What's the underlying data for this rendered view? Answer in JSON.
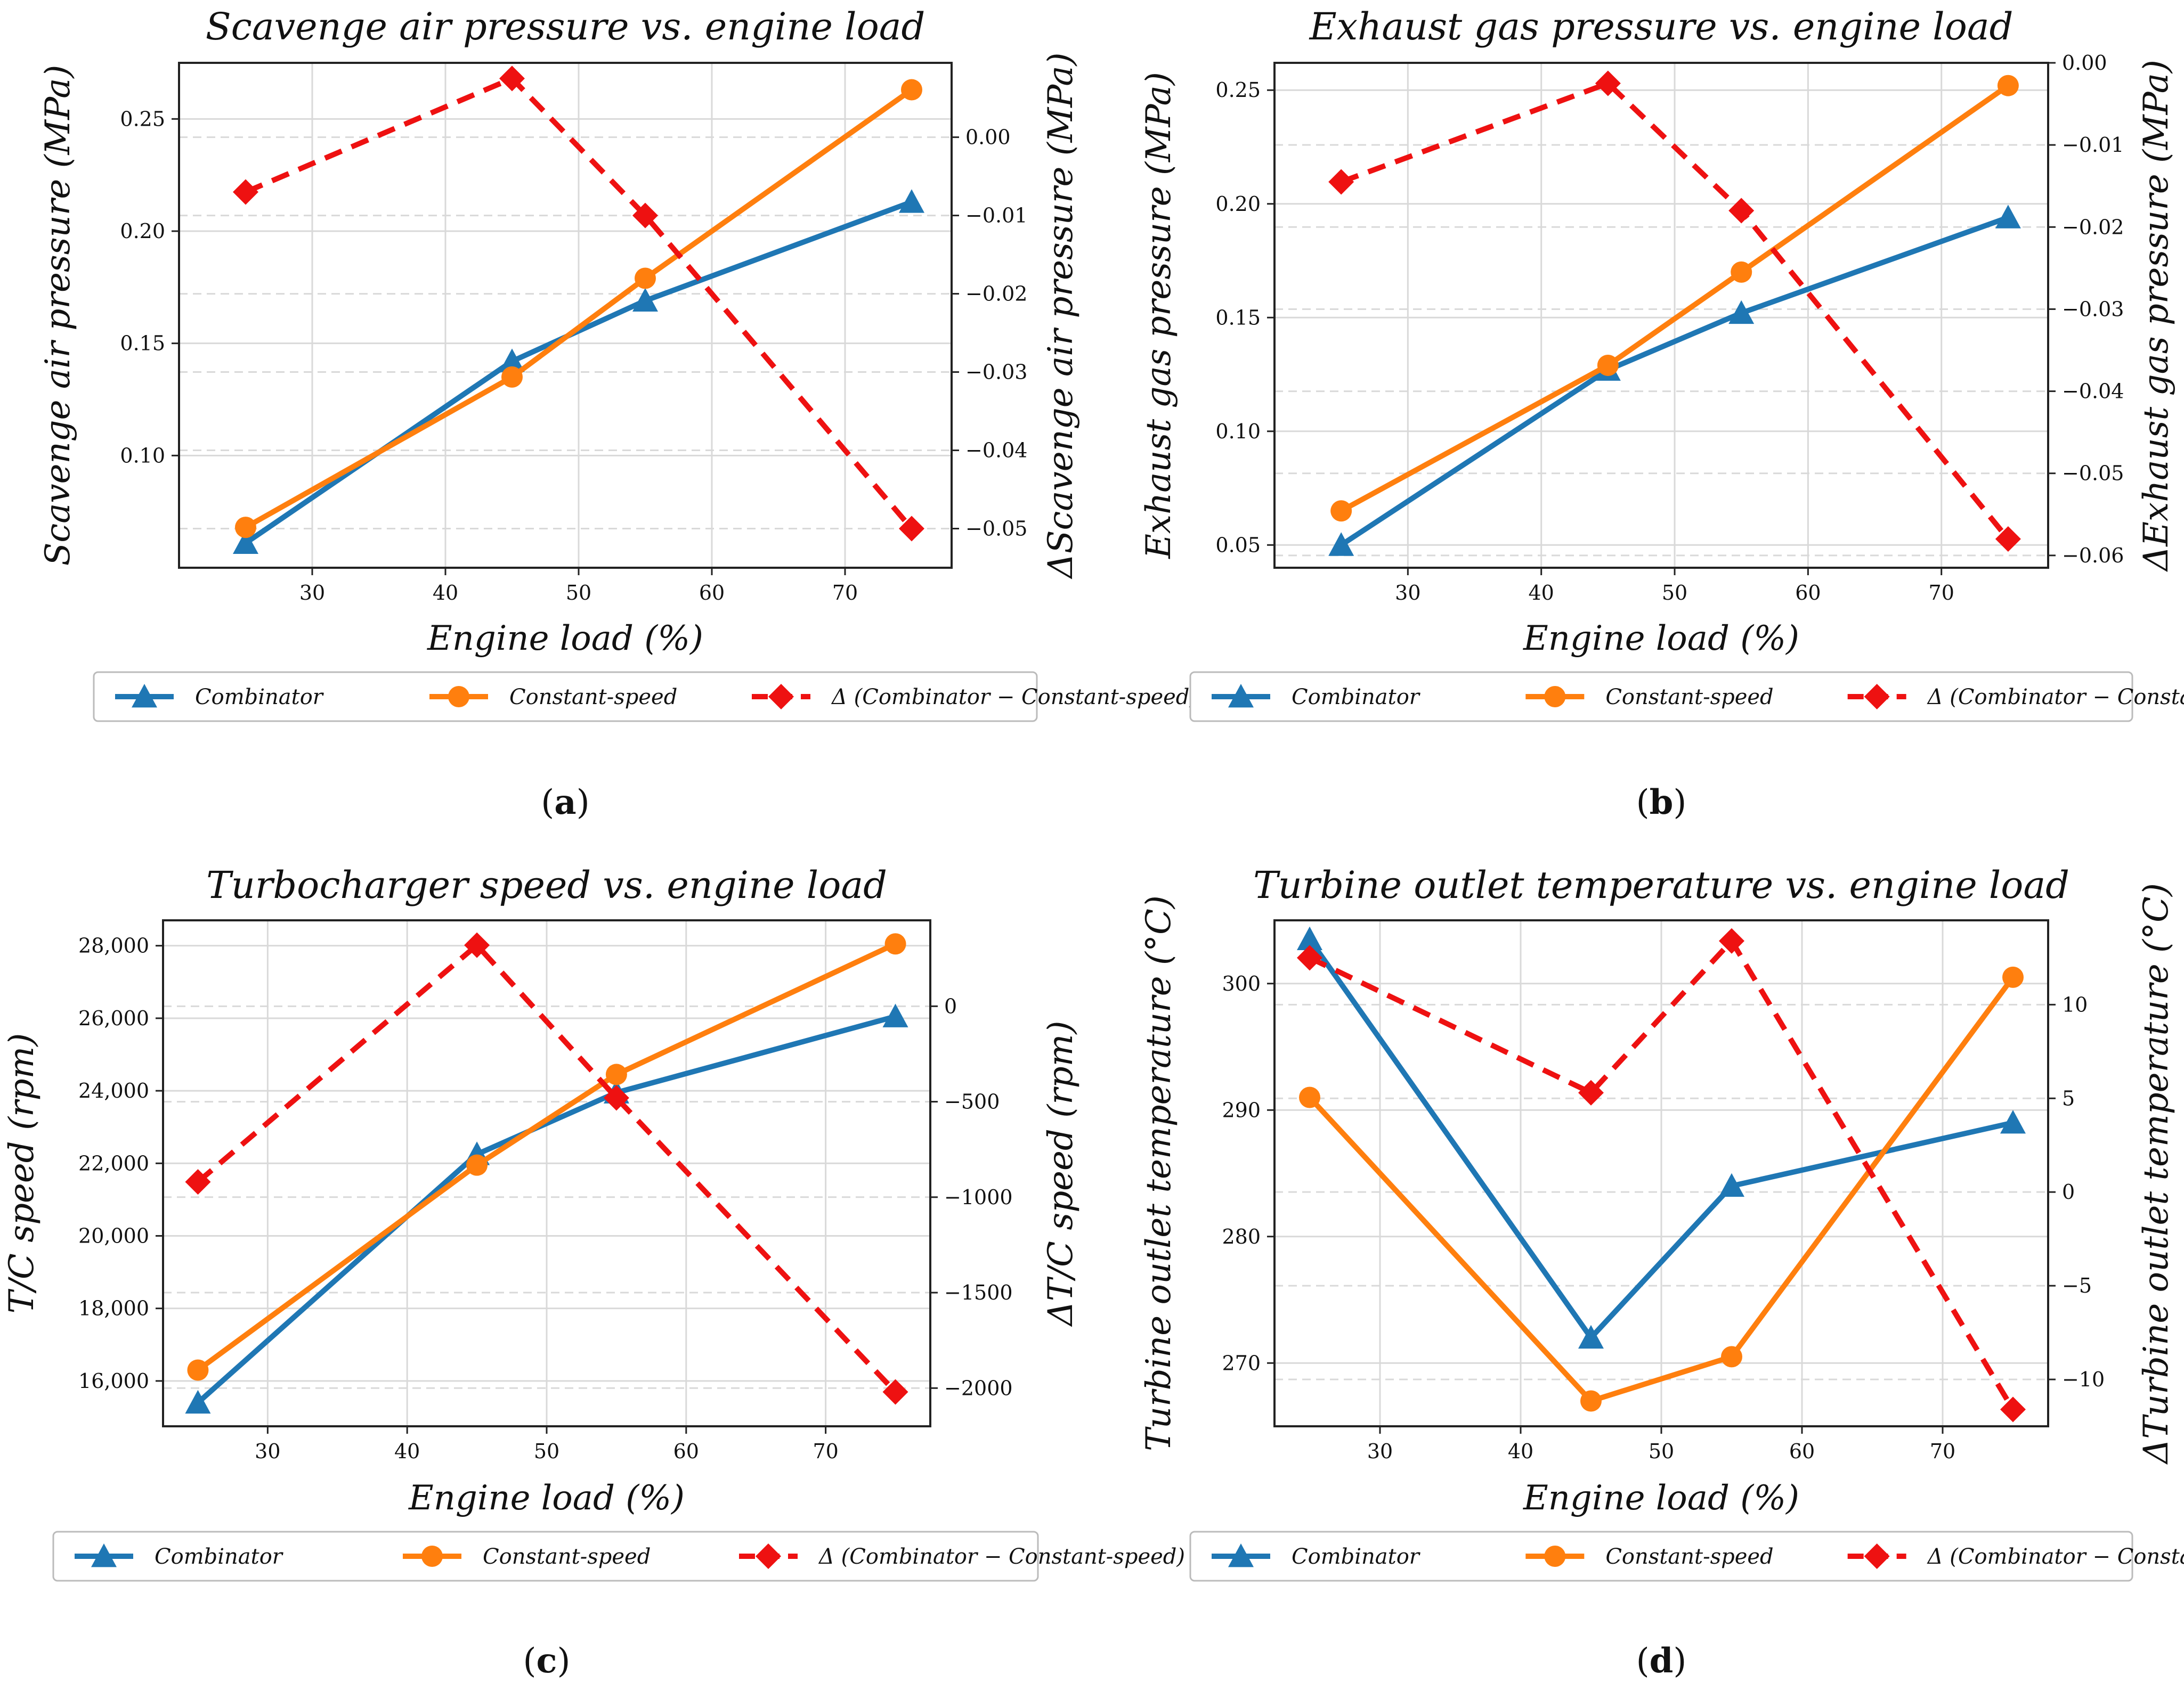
{
  "colors": {
    "combinator": "#1f77b4",
    "constant_speed": "#ff7f0e",
    "delta": "#ee1111",
    "grid": "#d9d9d9"
  },
  "chart_data": [
    {
      "id": "a",
      "type": "line",
      "panel_label": "a",
      "title": "Scavenge air pressure vs. engine load",
      "xlabel": "Engine load (%)",
      "ylabel": "Scavenge air pressure (MPa)",
      "y2label": "ΔScavenge air pressure (MPa)",
      "xlim": [
        20,
        78
      ],
      "ylim": [
        0.05,
        0.275
      ],
      "y2lim": [
        -0.055,
        0.0095
      ],
      "xticks": [
        30,
        40,
        50,
        60,
        70
      ],
      "yticks": [
        0.1,
        0.15,
        0.2,
        0.25
      ],
      "ytick_labels": [
        "0.10",
        "0.15",
        "0.20",
        "0.25"
      ],
      "y2ticks": [
        0.0,
        -0.01,
        -0.02,
        -0.03,
        -0.04,
        -0.05
      ],
      "y2tick_labels": [
        "0.00",
        "−0.01",
        "−0.02",
        "−0.03",
        "−0.04",
        "−0.05"
      ],
      "x": [
        25,
        45,
        55,
        75
      ],
      "series": [
        {
          "name": "Combinator",
          "axis": "left",
          "marker": "triangle",
          "values": [
            0.061,
            0.142,
            0.169,
            0.213
          ]
        },
        {
          "name": "Constant-speed",
          "axis": "left",
          "marker": "circle",
          "values": [
            0.068,
            0.135,
            0.179,
            0.263
          ]
        },
        {
          "name": "Δ (Combinator − Constant-speed)",
          "axis": "right",
          "marker": "diamond",
          "dashed": true,
          "values": [
            -0.007,
            0.0075,
            -0.01,
            -0.05
          ]
        }
      ]
    },
    {
      "id": "b",
      "type": "line",
      "panel_label": "b",
      "title": "Exhaust gas pressure vs. engine load",
      "xlabel": "Engine load (%)",
      "ylabel": "Exhaust gas pressure (MPa)",
      "y2label": "ΔExhaust gas pressure (MPa)",
      "xlim": [
        20,
        78
      ],
      "ylim": [
        0.04,
        0.262
      ],
      "y2lim": [
        -0.0615,
        0.0
      ],
      "xticks": [
        30,
        40,
        50,
        60,
        70
      ],
      "yticks": [
        0.05,
        0.1,
        0.15,
        0.2,
        0.25
      ],
      "ytick_labels": [
        "0.05",
        "0.10",
        "0.15",
        "0.20",
        "0.25"
      ],
      "y2ticks": [
        0.0,
        -0.01,
        -0.02,
        -0.03,
        -0.04,
        -0.05,
        -0.06
      ],
      "y2tick_labels": [
        "0.00",
        "−0.01",
        "−0.02",
        "−0.03",
        "−0.04",
        "−0.05",
        "−0.06"
      ],
      "x": [
        25,
        45,
        55,
        75
      ],
      "series": [
        {
          "name": "Combinator",
          "axis": "left",
          "marker": "triangle",
          "values": [
            0.05,
            0.127,
            0.152,
            0.194
          ]
        },
        {
          "name": "Constant-speed",
          "axis": "left",
          "marker": "circle",
          "values": [
            0.065,
            0.129,
            0.17,
            0.252
          ]
        },
        {
          "name": "Δ (Combinator − Constant-speed)",
          "axis": "right",
          "marker": "diamond",
          "dashed": true,
          "values": [
            -0.0145,
            -0.0025,
            -0.018,
            -0.058
          ]
        }
      ]
    },
    {
      "id": "c",
      "type": "line",
      "panel_label": "c",
      "title": "Turbocharger speed vs. engine load",
      "xlabel": "Engine load (%)",
      "ylabel": "T/C speed (rpm)",
      "y2label": "ΔT/C speed (rpm)",
      "xlim": [
        22.5,
        77.5
      ],
      "ylim": [
        14750,
        28700
      ],
      "y2lim": [
        -2200,
        450
      ],
      "xticks": [
        30,
        40,
        50,
        60,
        70
      ],
      "yticks": [
        16000,
        18000,
        20000,
        22000,
        24000,
        26000,
        28000
      ],
      "ytick_labels": [
        "16,000",
        "18,000",
        "20,000",
        "22,000",
        "24,000",
        "26,000",
        "28,000"
      ],
      "y2ticks": [
        0,
        -500,
        -1000,
        -1500,
        -2000
      ],
      "y2tick_labels": [
        "0",
        "−500",
        "−1000",
        "−1500",
        "−2000"
      ],
      "x": [
        25,
        45,
        55,
        75
      ],
      "series": [
        {
          "name": "Combinator",
          "axis": "left",
          "marker": "triangle",
          "values": [
            15400,
            22250,
            23950,
            26050
          ]
        },
        {
          "name": "Constant-speed",
          "axis": "left",
          "marker": "circle",
          "values": [
            16300,
            21950,
            24450,
            28050
          ]
        },
        {
          "name": "Δ (Combinator − Constant-speed)",
          "axis": "right",
          "marker": "diamond",
          "dashed": true,
          "values": [
            -920,
            320,
            -480,
            -2020
          ]
        }
      ]
    },
    {
      "id": "d",
      "type": "line",
      "panel_label": "d",
      "title": "Turbine outlet temperature vs. engine load",
      "xlabel": "Engine load (%)",
      "ylabel": "Turbine outlet temperature (°C)",
      "y2label": "ΔTurbine outlet temperature (°C)",
      "xlim": [
        22.5,
        77.5
      ],
      "ylim": [
        265,
        305
      ],
      "y2lim": [
        -12.5,
        14.5
      ],
      "xticks": [
        30,
        40,
        50,
        60,
        70
      ],
      "yticks": [
        270,
        280,
        290,
        300
      ],
      "ytick_labels": [
        "270",
        "280",
        "290",
        "300"
      ],
      "y2ticks": [
        10,
        5,
        0,
        -5,
        -10
      ],
      "y2tick_labels": [
        "10",
        "5",
        "0",
        "−5",
        "−10"
      ],
      "x": [
        25,
        45,
        55,
        75
      ],
      "series": [
        {
          "name": "Combinator",
          "axis": "left",
          "marker": "triangle",
          "values": [
            303.5,
            272,
            284,
            289
          ]
        },
        {
          "name": "Constant-speed",
          "axis": "left",
          "marker": "circle",
          "values": [
            291,
            267,
            270.5,
            300.5
          ]
        },
        {
          "name": "Δ (Combinator − Constant-speed)",
          "axis": "right",
          "marker": "diamond",
          "dashed": true,
          "values": [
            12.5,
            5.3,
            13.4,
            -11.6
          ]
        }
      ]
    }
  ]
}
